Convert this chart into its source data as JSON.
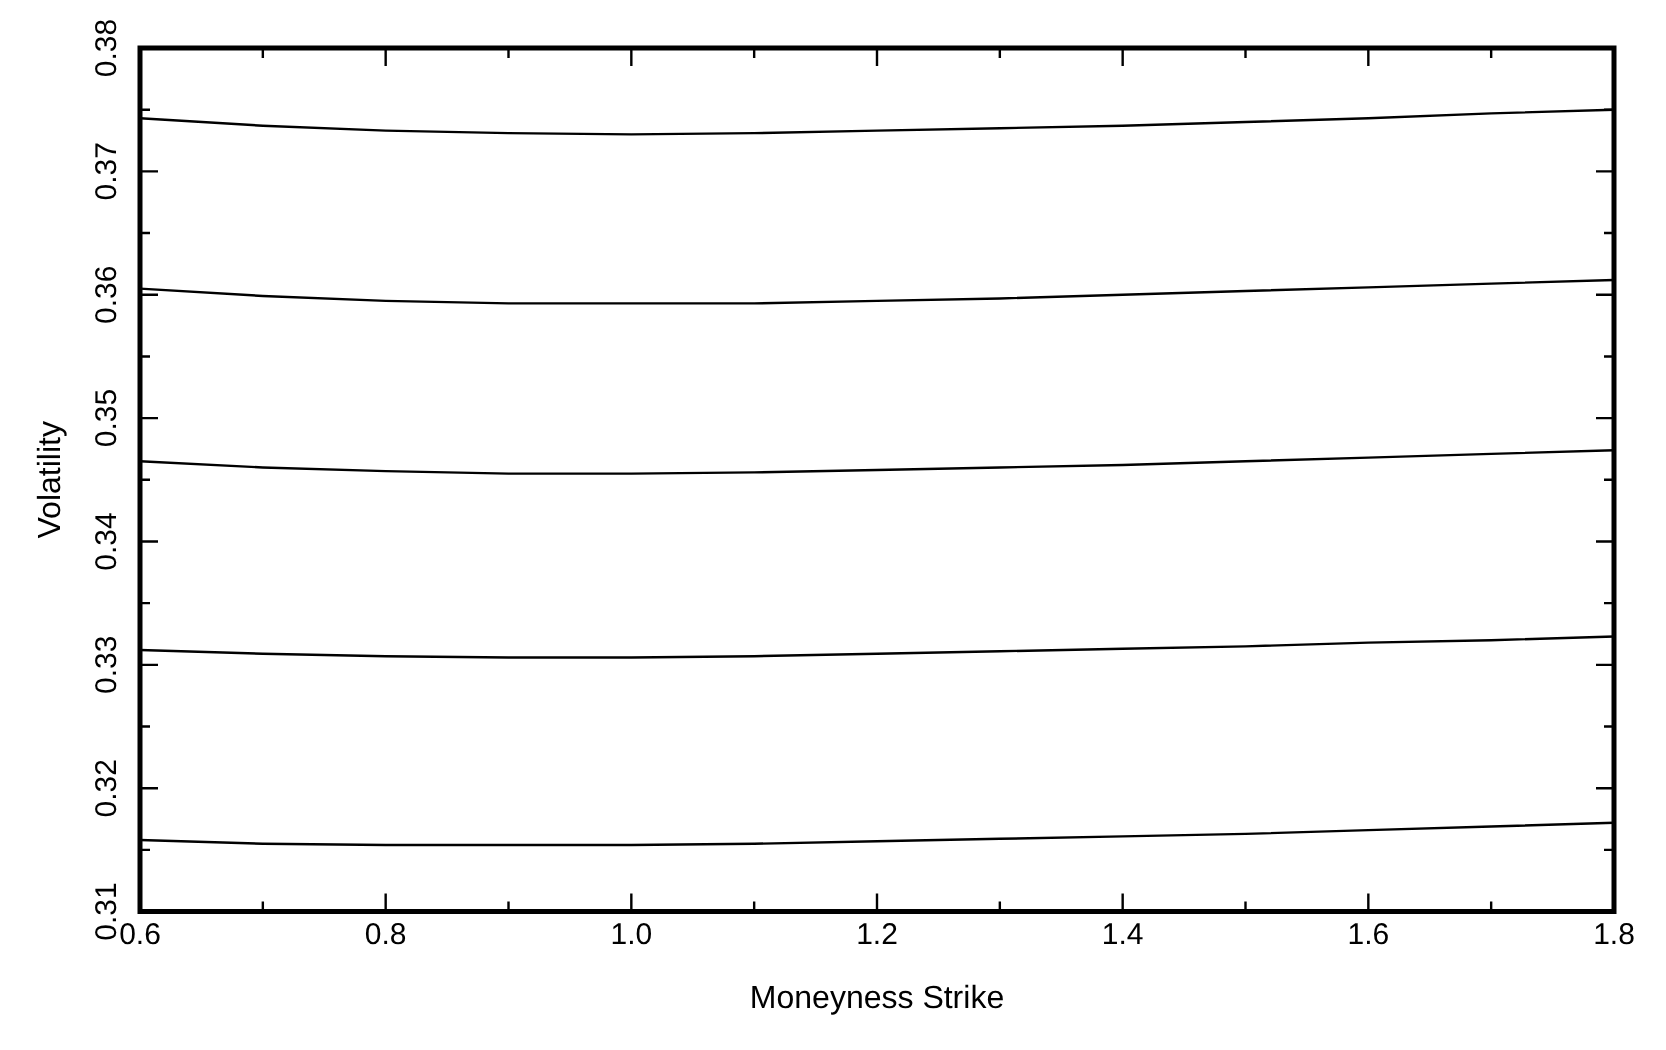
{
  "chart_data": {
    "type": "line",
    "xlabel": "Moneyness Strike",
    "ylabel": "Volatility",
    "x": [
      0.6,
      0.7,
      0.8,
      0.9,
      1.0,
      1.1,
      1.2,
      1.3,
      1.4,
      1.5,
      1.6,
      1.7,
      1.8
    ],
    "series": [
      {
        "color": "#000000",
        "values": [
          0.3743,
          0.3737,
          0.3733,
          0.3731,
          0.373,
          0.3731,
          0.3733,
          0.3735,
          0.3737,
          0.374,
          0.3743,
          0.3747,
          0.375
        ]
      },
      {
        "color": "#000000",
        "values": [
          0.3605,
          0.3599,
          0.3595,
          0.3593,
          0.3593,
          0.3593,
          0.3595,
          0.3597,
          0.36,
          0.3603,
          0.3606,
          0.3609,
          0.3612
        ]
      },
      {
        "color": "#000000",
        "values": [
          0.3465,
          0.346,
          0.3457,
          0.3455,
          0.3455,
          0.3456,
          0.3458,
          0.346,
          0.3462,
          0.3465,
          0.3468,
          0.3471,
          0.3474
        ]
      },
      {
        "color": "#000000",
        "values": [
          0.3312,
          0.3309,
          0.3307,
          0.3306,
          0.3306,
          0.3307,
          0.3309,
          0.3311,
          0.3313,
          0.3315,
          0.3318,
          0.332,
          0.3323
        ]
      },
      {
        "color": "#000000",
        "values": [
          0.3158,
          0.3155,
          0.3154,
          0.3154,
          0.3154,
          0.3155,
          0.3157,
          0.3159,
          0.3161,
          0.3163,
          0.3166,
          0.3169,
          0.3172
        ]
      }
    ],
    "xlim": [
      0.6,
      1.8
    ],
    "xticks": [
      0.6,
      {
        "value": 0.7,
        "label": null
      },
      0.8,
      {
        "value": 0.9,
        "label": null
      },
      {
        "value": 1,
        "label": "1.0"
      },
      {
        "value": 1.1,
        "label": null
      },
      1.2,
      {
        "value": 1.3,
        "label": null
      },
      1.4,
      {
        "value": 1.5,
        "label": null
      },
      1.6,
      {
        "value": 1.7,
        "label": null
      },
      1.8
    ],
    "ylim": [
      0.31,
      0.38
    ],
    "yticks": [
      0.31,
      {
        "value": 0.315,
        "label": null
      },
      0.32,
      {
        "value": 0.325,
        "label": null
      },
      0.33,
      {
        "value": 0.335,
        "label": null
      },
      0.34,
      {
        "value": 0.345,
        "label": null
      },
      0.35,
      {
        "value": 0.355,
        "label": null
      },
      0.36,
      {
        "value": 0.365,
        "label": null
      },
      0.37,
      {
        "value": 0.375,
        "label": null
      },
      0.38
    ],
    "grid": false,
    "legend": false,
    "marker": "none",
    "line_style": "solid"
  }
}
